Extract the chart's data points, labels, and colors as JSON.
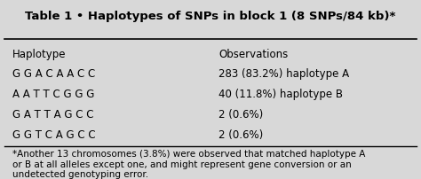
{
  "title": "Table 1 • Haplotypes of SNPs in block 1 (8 SNPs/84 kb)*",
  "col_headers": [
    "Haplotype",
    "Observations"
  ],
  "rows": [
    [
      "G G A C A A C C",
      "283 (83.2%) haplotype A"
    ],
    [
      "A A T T C G G G",
      "40 (11.8%) haplotype B"
    ],
    [
      "G A T T A G C C",
      "2 (0.6%)"
    ],
    [
      "G G T C A G C C",
      "2 (0.6%)"
    ]
  ],
  "footnote": "*Another 13 chromosomes (3.8%) were observed that matched haplotype A\nor B at all alleles except one, and might represent gene conversion or an\nundetected genotyping error.",
  "bg_color": "#d8d8d8",
  "title_fontsize": 9.5,
  "body_fontsize": 8.5,
  "footnote_fontsize": 7.5,
  "col_header_fontsize": 8.5
}
